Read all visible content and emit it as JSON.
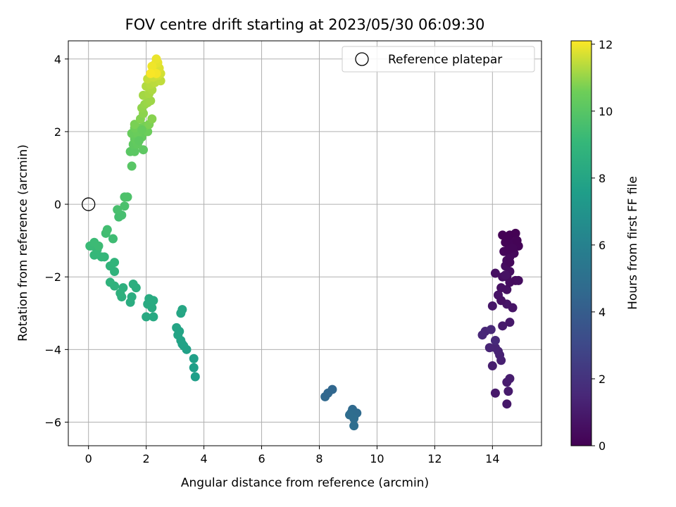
{
  "chart_data": {
    "type": "scatter",
    "title": "FOV centre drift starting at 2023/05/30 06:09:30",
    "xlabel": "Angular distance from reference (arcmin)",
    "ylabel": "Rotation from reference (arcmin)",
    "xlim": [
      -0.7,
      15.7
    ],
    "ylim": [
      -6.65,
      4.5
    ],
    "xticks": [
      0,
      2,
      4,
      6,
      8,
      10,
      12,
      14
    ],
    "yticks": [
      -6,
      -4,
      -2,
      0,
      2,
      4
    ],
    "grid": true,
    "legend": {
      "label": "Reference platepar",
      "position": "top-right"
    },
    "reference_point": {
      "x": 0,
      "y": 0
    },
    "colorbar": {
      "label": "Hours from first FF file",
      "range": [
        0,
        12.1
      ],
      "ticks": [
        0,
        2,
        4,
        6,
        8,
        10,
        12
      ],
      "colormap": "viridis"
    },
    "points": [
      {
        "x": 14.5,
        "y": -5.5,
        "h": 0.9
      },
      {
        "x": 14.1,
        "y": -5.2,
        "h": 0.95
      },
      {
        "x": 14.55,
        "y": -5.15,
        "h": 1.0
      },
      {
        "x": 14.5,
        "y": -4.9,
        "h": 1.05
      },
      {
        "x": 14.6,
        "y": -4.8,
        "h": 1.1
      },
      {
        "x": 14.0,
        "y": -4.45,
        "h": 1.15
      },
      {
        "x": 14.3,
        "y": -4.3,
        "h": 1.2
      },
      {
        "x": 14.25,
        "y": -4.15,
        "h": 1.25
      },
      {
        "x": 14.2,
        "y": -4.05,
        "h": 1.3
      },
      {
        "x": 14.1,
        "y": -3.95,
        "h": 1.35
      },
      {
        "x": 13.9,
        "y": -3.95,
        "h": 1.4
      },
      {
        "x": 13.75,
        "y": -3.5,
        "h": 1.45
      },
      {
        "x": 13.65,
        "y": -3.6,
        "h": 1.5
      },
      {
        "x": 13.95,
        "y": -3.45,
        "h": 1.55
      },
      {
        "x": 14.1,
        "y": -3.75,
        "h": 1.6
      },
      {
        "x": 14.35,
        "y": -3.35,
        "h": 1.0
      },
      {
        "x": 14.6,
        "y": -3.25,
        "h": 0.9
      },
      {
        "x": 14.0,
        "y": -2.8,
        "h": 0.85
      },
      {
        "x": 14.5,
        "y": -2.75,
        "h": 0.8
      },
      {
        "x": 14.7,
        "y": -2.85,
        "h": 0.75
      },
      {
        "x": 14.2,
        "y": -2.5,
        "h": 0.7
      },
      {
        "x": 14.3,
        "y": -2.65,
        "h": 0.65
      },
      {
        "x": 14.3,
        "y": -2.3,
        "h": 0.6
      },
      {
        "x": 14.5,
        "y": -2.35,
        "h": 0.6
      },
      {
        "x": 14.5,
        "y": -2.0,
        "h": 0.5
      },
      {
        "x": 14.6,
        "y": -2.15,
        "h": 0.45
      },
      {
        "x": 14.8,
        "y": -2.1,
        "h": 0.4
      },
      {
        "x": 14.9,
        "y": -2.1,
        "h": 0.45
      },
      {
        "x": 14.1,
        "y": -1.9,
        "h": 0.6
      },
      {
        "x": 14.35,
        "y": -2.0,
        "h": 0.55
      },
      {
        "x": 14.6,
        "y": -1.85,
        "h": 0.5
      },
      {
        "x": 14.45,
        "y": -1.7,
        "h": 0.45
      },
      {
        "x": 14.5,
        "y": -1.55,
        "h": 0.4
      },
      {
        "x": 14.6,
        "y": -1.45,
        "h": 0.35
      },
      {
        "x": 14.75,
        "y": -1.35,
        "h": 0.3
      },
      {
        "x": 14.4,
        "y": -1.3,
        "h": 0.25
      },
      {
        "x": 14.55,
        "y": -1.25,
        "h": 0.2
      },
      {
        "x": 14.65,
        "y": -1.05,
        "h": 0.15
      },
      {
        "x": 14.9,
        "y": -1.15,
        "h": 0.12
      },
      {
        "x": 14.45,
        "y": -1.05,
        "h": 0.1
      },
      {
        "x": 14.5,
        "y": -0.9,
        "h": 0.08
      },
      {
        "x": 14.35,
        "y": -0.85,
        "h": 0.05
      },
      {
        "x": 14.6,
        "y": -0.85,
        "h": 0.03
      },
      {
        "x": 14.8,
        "y": -0.8,
        "h": 0.02
      },
      {
        "x": 14.7,
        "y": -1.2,
        "h": 0.18
      },
      {
        "x": 14.85,
        "y": -1.0,
        "h": 0.1
      },
      {
        "x": 14.6,
        "y": -1.6,
        "h": 0.3
      },
      {
        "x": 14.45,
        "y": -1.95,
        "h": 0.65
      },
      {
        "x": 8.2,
        "y": -5.3,
        "h": 4.6
      },
      {
        "x": 8.3,
        "y": -5.2,
        "h": 4.55
      },
      {
        "x": 8.45,
        "y": -5.1,
        "h": 4.5
      },
      {
        "x": 9.15,
        "y": -5.65,
        "h": 4.65
      },
      {
        "x": 9.3,
        "y": -5.75,
        "h": 4.7
      },
      {
        "x": 9.1,
        "y": -5.75,
        "h": 4.75
      },
      {
        "x": 9.2,
        "y": -5.9,
        "h": 4.8
      },
      {
        "x": 9.05,
        "y": -5.8,
        "h": 4.85
      },
      {
        "x": 9.2,
        "y": -6.1,
        "h": 4.9
      },
      {
        "x": 3.7,
        "y": -4.75,
        "h": 7.6
      },
      {
        "x": 3.65,
        "y": -4.5,
        "h": 7.65
      },
      {
        "x": 3.65,
        "y": -4.25,
        "h": 7.7
      },
      {
        "x": 3.4,
        "y": -4.0,
        "h": 7.75
      },
      {
        "x": 3.3,
        "y": -3.9,
        "h": 7.8
      },
      {
        "x": 3.2,
        "y": -3.75,
        "h": 7.85
      },
      {
        "x": 3.1,
        "y": -3.6,
        "h": 7.9
      },
      {
        "x": 3.05,
        "y": -3.4,
        "h": 7.95
      },
      {
        "x": 3.15,
        "y": -3.5,
        "h": 7.9
      },
      {
        "x": 3.2,
        "y": -3.0,
        "h": 8.0
      },
      {
        "x": 3.25,
        "y": -2.9,
        "h": 8.05
      },
      {
        "x": 3.25,
        "y": -3.85,
        "h": 7.8
      },
      {
        "x": 2.25,
        "y": -3.1,
        "h": 8.2
      },
      {
        "x": 2.0,
        "y": -3.1,
        "h": 8.25
      },
      {
        "x": 2.2,
        "y": -2.85,
        "h": 8.3
      },
      {
        "x": 2.05,
        "y": -2.75,
        "h": 8.3
      },
      {
        "x": 2.1,
        "y": -2.6,
        "h": 8.35
      },
      {
        "x": 2.25,
        "y": -2.65,
        "h": 8.35
      },
      {
        "x": 1.45,
        "y": -2.7,
        "h": 8.4
      },
      {
        "x": 1.5,
        "y": -2.55,
        "h": 8.45
      },
      {
        "x": 1.65,
        "y": -2.3,
        "h": 8.5
      },
      {
        "x": 1.55,
        "y": -2.2,
        "h": 8.55
      },
      {
        "x": 1.15,
        "y": -2.55,
        "h": 8.6
      },
      {
        "x": 1.2,
        "y": -2.3,
        "h": 8.6
      },
      {
        "x": 1.1,
        "y": -2.45,
        "h": 8.65
      },
      {
        "x": 0.9,
        "y": -2.25,
        "h": 8.7
      },
      {
        "x": 0.75,
        "y": -2.15,
        "h": 8.75
      },
      {
        "x": 0.9,
        "y": -1.85,
        "h": 8.8
      },
      {
        "x": 0.75,
        "y": -1.7,
        "h": 8.85
      },
      {
        "x": 0.9,
        "y": -1.6,
        "h": 8.9
      },
      {
        "x": 0.55,
        "y": -1.45,
        "h": 8.95
      },
      {
        "x": 0.45,
        "y": -1.45,
        "h": 9.0
      },
      {
        "x": 0.2,
        "y": -1.4,
        "h": 9.05
      },
      {
        "x": 0.3,
        "y": -1.25,
        "h": 9.1
      },
      {
        "x": 0.15,
        "y": -1.15,
        "h": 9.15
      },
      {
        "x": 0.05,
        "y": -1.15,
        "h": 9.2
      },
      {
        "x": 0.2,
        "y": -1.05,
        "h": 9.25
      },
      {
        "x": 0.35,
        "y": -1.15,
        "h": 9.3
      },
      {
        "x": 0.85,
        "y": -0.95,
        "h": 9.35
      },
      {
        "x": 0.6,
        "y": -0.8,
        "h": 9.4
      },
      {
        "x": 0.65,
        "y": -0.7,
        "h": 9.45
      },
      {
        "x": 1.05,
        "y": -0.35,
        "h": 9.5
      },
      {
        "x": 1.15,
        "y": -0.3,
        "h": 9.55
      },
      {
        "x": 1.0,
        "y": -0.15,
        "h": 9.6
      },
      {
        "x": 1.25,
        "y": -0.05,
        "h": 9.65
      },
      {
        "x": 1.25,
        "y": 0.2,
        "h": 9.7
      },
      {
        "x": 1.35,
        "y": 0.2,
        "h": 9.75
      },
      {
        "x": 1.5,
        "y": 1.05,
        "h": 10.0
      },
      {
        "x": 1.45,
        "y": 1.45,
        "h": 10.05
      },
      {
        "x": 1.6,
        "y": 1.45,
        "h": 10.1
      },
      {
        "x": 1.9,
        "y": 1.5,
        "h": 10.15
      },
      {
        "x": 1.55,
        "y": 1.65,
        "h": 10.2
      },
      {
        "x": 1.7,
        "y": 1.65,
        "h": 10.25
      },
      {
        "x": 1.6,
        "y": 1.8,
        "h": 10.3
      },
      {
        "x": 1.85,
        "y": 1.85,
        "h": 10.35
      },
      {
        "x": 1.5,
        "y": 1.95,
        "h": 10.4
      },
      {
        "x": 1.7,
        "y": 1.95,
        "h": 10.45
      },
      {
        "x": 2.05,
        "y": 2.0,
        "h": 10.5
      },
      {
        "x": 1.6,
        "y": 2.1,
        "h": 10.55
      },
      {
        "x": 1.8,
        "y": 2.1,
        "h": 10.6
      },
      {
        "x": 1.95,
        "y": 2.15,
        "h": 10.65
      },
      {
        "x": 1.6,
        "y": 2.2,
        "h": 10.7
      },
      {
        "x": 2.1,
        "y": 2.2,
        "h": 10.75
      },
      {
        "x": 1.8,
        "y": 2.35,
        "h": 10.8
      },
      {
        "x": 2.2,
        "y": 2.35,
        "h": 10.85
      },
      {
        "x": 1.9,
        "y": 2.5,
        "h": 10.9
      },
      {
        "x": 1.85,
        "y": 2.65,
        "h": 10.95
      },
      {
        "x": 1.95,
        "y": 2.75,
        "h": 11.0
      },
      {
        "x": 2.05,
        "y": 2.8,
        "h": 11.05
      },
      {
        "x": 2.15,
        "y": 2.85,
        "h": 11.1
      },
      {
        "x": 1.9,
        "y": 3.0,
        "h": 11.15
      },
      {
        "x": 2.1,
        "y": 3.05,
        "h": 11.2
      },
      {
        "x": 2.2,
        "y": 3.15,
        "h": 11.25
      },
      {
        "x": 2.0,
        "y": 3.25,
        "h": 11.3
      },
      {
        "x": 2.15,
        "y": 3.3,
        "h": 11.35
      },
      {
        "x": 2.3,
        "y": 3.35,
        "h": 11.4
      },
      {
        "x": 2.5,
        "y": 3.4,
        "h": 11.45
      },
      {
        "x": 2.05,
        "y": 3.45,
        "h": 11.5
      },
      {
        "x": 2.25,
        "y": 3.5,
        "h": 11.55
      },
      {
        "x": 2.4,
        "y": 3.55,
        "h": 11.6
      },
      {
        "x": 2.5,
        "y": 3.6,
        "h": 11.65
      },
      {
        "x": 2.3,
        "y": 3.7,
        "h": 11.7
      },
      {
        "x": 2.45,
        "y": 3.75,
        "h": 11.75
      },
      {
        "x": 2.3,
        "y": 3.85,
        "h": 11.8
      },
      {
        "x": 2.4,
        "y": 3.9,
        "h": 11.85
      },
      {
        "x": 2.35,
        "y": 4.0,
        "h": 11.9
      },
      {
        "x": 2.2,
        "y": 3.8,
        "h": 11.95
      },
      {
        "x": 2.35,
        "y": 3.6,
        "h": 12.0
      },
      {
        "x": 2.15,
        "y": 3.6,
        "h": 12.05
      },
      {
        "x": 1.85,
        "y": 2.05,
        "h": 10.4
      },
      {
        "x": 1.75,
        "y": 1.75,
        "h": 10.2
      }
    ]
  }
}
